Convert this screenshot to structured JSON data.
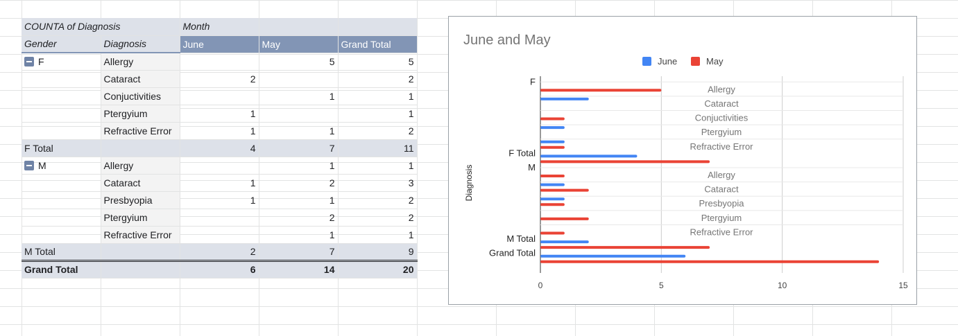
{
  "pivot": {
    "header1": {
      "values_label": "COUNTA of Diagnosis",
      "col_group_label": "Month"
    },
    "header2": {
      "gender": "Gender",
      "diagnosis": "Diagnosis",
      "june": "June",
      "may": "May",
      "grand_total": "Grand Total"
    },
    "rows": [
      {
        "gender": "F",
        "diagnosis": "Allergy",
        "june": "",
        "may": "5",
        "total": "5"
      },
      {
        "gender": "",
        "diagnosis": "Cataract",
        "june": "2",
        "may": "",
        "total": "2"
      },
      {
        "gender": "",
        "diagnosis": "Conjuctivities",
        "june": "",
        "may": "1",
        "total": "1"
      },
      {
        "gender": "",
        "diagnosis": "Ptergyium",
        "june": "1",
        "may": "",
        "total": "1"
      },
      {
        "gender": "",
        "diagnosis": "Refractive Error",
        "june": "1",
        "may": "1",
        "total": "2"
      },
      {
        "gender": "F Total",
        "diagnosis": "",
        "june": "4",
        "may": "7",
        "total": "11"
      },
      {
        "gender": "M",
        "diagnosis": "Allergy",
        "june": "",
        "may": "1",
        "total": "1"
      },
      {
        "gender": "",
        "diagnosis": "Cataract",
        "june": "1",
        "may": "2",
        "total": "3"
      },
      {
        "gender": "",
        "diagnosis": "Presbyopia",
        "june": "1",
        "may": "1",
        "total": "2"
      },
      {
        "gender": "",
        "diagnosis": "Ptergyium",
        "june": "",
        "may": "2",
        "total": "2"
      },
      {
        "gender": "",
        "diagnosis": "Refractive Error",
        "june": "",
        "may": "1",
        "total": "1"
      },
      {
        "gender": "M Total",
        "diagnosis": "",
        "june": "2",
        "may": "7",
        "total": "9"
      },
      {
        "gender": "Grand Total",
        "diagnosis": "",
        "june": "6",
        "may": "14",
        "total": "20"
      }
    ]
  },
  "colors": {
    "june": "#4285f4",
    "may": "#ea4335",
    "header_dark": "#8295b5",
    "header_light": "#dde1e9"
  },
  "chart_data": {
    "type": "bar",
    "orientation": "horizontal",
    "title": "June and May",
    "ylabel": "Diagnosis",
    "xlabel": "",
    "xlim": [
      0,
      15
    ],
    "xticks": [
      "0",
      "5",
      "10",
      "15"
    ],
    "legend": {
      "placement": "top",
      "entries": [
        "June",
        "May"
      ]
    },
    "gender_labels": [
      "F",
      "",
      "",
      "",
      "",
      "F Total",
      "M",
      "",
      "",
      "",
      "",
      "M Total",
      "Grand Total"
    ],
    "categories": [
      "Allergy",
      "Cataract",
      "Conjuctivities",
      "Ptergyium",
      "Refractive Error",
      "",
      "Allergy",
      "Cataract",
      "Presbyopia",
      "Ptergyium",
      "Refractive Error",
      "",
      ""
    ],
    "series": [
      {
        "name": "June",
        "values": [
          0,
          2,
          0,
          1,
          1,
          4,
          0,
          1,
          1,
          0,
          0,
          2,
          6
        ]
      },
      {
        "name": "May",
        "values": [
          5,
          0,
          1,
          0,
          1,
          7,
          1,
          2,
          1,
          2,
          1,
          7,
          14
        ]
      }
    ]
  }
}
